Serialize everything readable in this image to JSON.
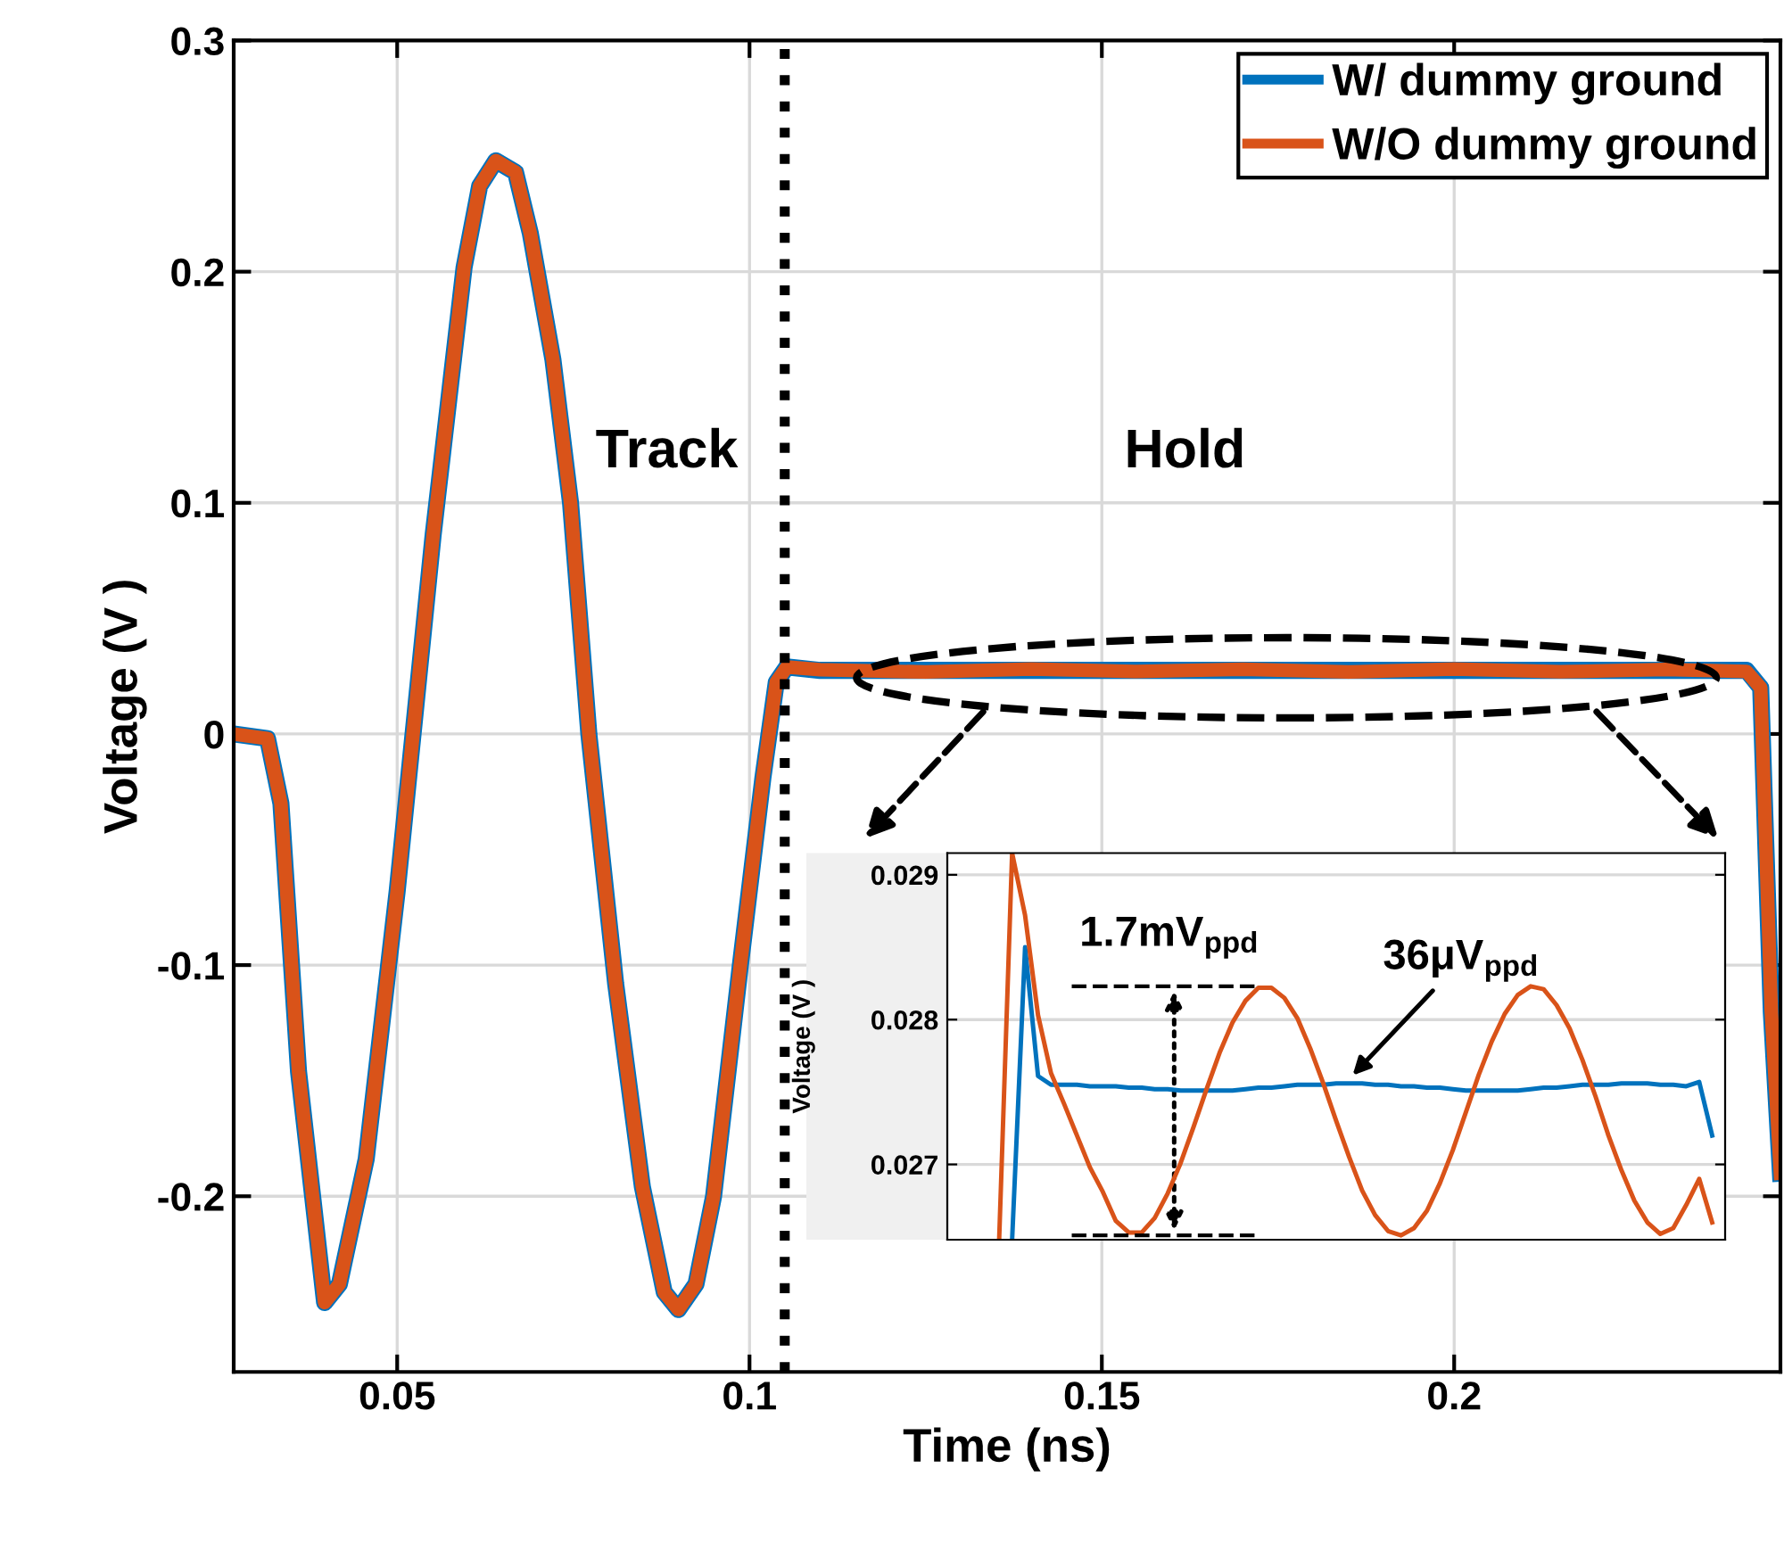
{
  "chart_data": [
    {
      "type": "line",
      "xlabel": "Time (ns)",
      "ylabel": "Voltage (V )",
      "xlim": [
        0.0268,
        0.2463
      ],
      "xticks": [
        0.05,
        0.1,
        0.15,
        0.2
      ],
      "ylim": [
        -0.276,
        0.3
      ],
      "yticks": [
        -0.2,
        -0.1,
        0,
        0.1,
        0.2,
        0.3
      ],
      "grid": true,
      "legend": "top right",
      "line_style": "solid",
      "x": [
        0.0268,
        0.0316,
        0.0335,
        0.036,
        0.0397,
        0.0418,
        0.0456,
        0.05,
        0.0551,
        0.0595,
        0.0617,
        0.064,
        0.0668,
        0.0689,
        0.0721,
        0.0746,
        0.0772,
        0.081,
        0.0848,
        0.0879,
        0.0899,
        0.0924,
        0.0949,
        0.0987,
        0.1019,
        0.1038,
        0.1053,
        0.11,
        0.125,
        0.14,
        0.155,
        0.17,
        0.185,
        0.2,
        0.215,
        0.23,
        0.2415,
        0.2435,
        0.245,
        0.2463
      ],
      "series": [
        {
          "name": "W/ dummy ground",
          "color": "#0072bd",
          "values": [
            0,
            -0.002,
            -0.03,
            -0.146,
            -0.246,
            -0.238,
            -0.184,
            -0.068,
            0.086,
            0.202,
            0.237,
            0.248,
            0.243,
            0.2165,
            0.162,
            0.1,
            0,
            -0.108,
            -0.196,
            -0.2415,
            -0.249,
            -0.238,
            -0.2,
            -0.1,
            -0.019,
            0.0224,
            0.029,
            0.0275,
            0.0275,
            0.0275,
            0.0275,
            0.0275,
            0.0275,
            0.0275,
            0.0275,
            0.0275,
            0.0275,
            0.02,
            -0.12,
            -0.19
          ]
        },
        {
          "name": "W/O dummy ground",
          "color": "#d95319",
          "values": [
            0,
            -0.002,
            -0.03,
            -0.146,
            -0.246,
            -0.238,
            -0.184,
            -0.068,
            0.086,
            0.202,
            0.237,
            0.248,
            0.243,
            0.2165,
            0.162,
            0.1,
            0,
            -0.108,
            -0.196,
            -0.2415,
            -0.249,
            -0.238,
            -0.2,
            -0.1,
            -0.019,
            0.0224,
            0.029,
            0.0278,
            0.0268,
            0.0281,
            0.027,
            0.028,
            0.0268,
            0.0281,
            0.0269,
            0.0279,
            0.027,
            0.02,
            -0.12,
            -0.19
          ]
        }
      ],
      "ref_lines": [
        {
          "axis": "x",
          "value": 0.105,
          "color": "#000000",
          "line_style": "dotted"
        }
      ],
      "annotations": [
        "Track",
        "Hold"
      ]
    },
    {
      "type": "line",
      "ylabel": "Voltage (V )",
      "tick_labels": "y",
      "grid": "y",
      "line_style": "solid",
      "ylim": [
        0.02648,
        0.02915
      ],
      "yticks": [
        0.027,
        0.028,
        0.029
      ],
      "categories": [
        null,
        null,
        null,
        null,
        null,
        null,
        null,
        null,
        null,
        null,
        null,
        null,
        null,
        null,
        null,
        null,
        null,
        null,
        null,
        null,
        null,
        null,
        null,
        null,
        null,
        null,
        null,
        null,
        null,
        null,
        null,
        null,
        null,
        null,
        null,
        null,
        null,
        null,
        null,
        null,
        null,
        null,
        null,
        null,
        null,
        null,
        null,
        null,
        null,
        null,
        null,
        null,
        null,
        null,
        null,
        null,
        null,
        null,
        null,
        null,
        null
      ],
      "series": [
        {
          "color": "#0072bd",
          "values": [
            null,
            null,
            null,
            null,
            null,
            0.02648,
            0.0285,
            0.02761,
            0.02755,
            0.02755,
            0.02755,
            0.02754,
            0.02754,
            0.02754,
            0.02753,
            0.02753,
            0.02752,
            0.02752,
            0.02751,
            0.02751,
            0.02751,
            0.02751,
            0.02751,
            0.02752,
            0.02753,
            0.02753,
            0.02754,
            0.02755,
            0.02755,
            0.02755,
            0.02756,
            0.02756,
            0.02756,
            0.02755,
            0.02755,
            0.02754,
            0.02754,
            0.02753,
            0.02753,
            0.02752,
            0.02751,
            0.02751,
            0.02751,
            0.02751,
            0.02751,
            0.02752,
            0.02753,
            0.02753,
            0.02754,
            0.02755,
            0.02755,
            0.02755,
            0.02756,
            0.02756,
            0.02756,
            0.02755,
            0.02755,
            0.02754,
            0.02757,
            0.0272,
            null
          ]
        },
        {
          "color": "#d95319",
          "values": [
            null,
            null,
            null,
            null,
            0.02648,
            0.02915,
            0.02872,
            0.02803,
            0.02763,
            0.02742,
            0.0272,
            0.02698,
            0.02681,
            0.02661,
            0.02653,
            0.02653,
            0.02663,
            0.0268,
            0.02701,
            0.02726,
            0.02752,
            0.02777,
            0.02798,
            0.02813,
            0.02822,
            0.02822,
            0.02815,
            0.02801,
            0.0278,
            0.02756,
            0.0273,
            0.02705,
            0.02682,
            0.02665,
            0.02654,
            0.02651,
            0.02656,
            0.02668,
            0.02687,
            0.0271,
            0.02736,
            0.02762,
            0.02785,
            0.02804,
            0.02817,
            0.02823,
            0.02821,
            0.0281,
            0.02794,
            0.02772,
            0.02747,
            0.0272,
            0.02696,
            0.02675,
            0.0266,
            0.02652,
            0.02656,
            0.02672,
            0.0269,
            0.0266,
            null
          ]
        }
      ],
      "ref_lines": [
        {
          "axis": "y",
          "value": 0.02823,
          "color": "#000000",
          "line_style": "dashed"
        },
        {
          "axis": "y",
          "value": 0.02651,
          "color": "#000000",
          "line_style": "dashed"
        }
      ],
      "annotations": [
        "1.7mV$_{ppd}$",
        "36μV$_{ppd}$"
      ]
    }
  ]
}
